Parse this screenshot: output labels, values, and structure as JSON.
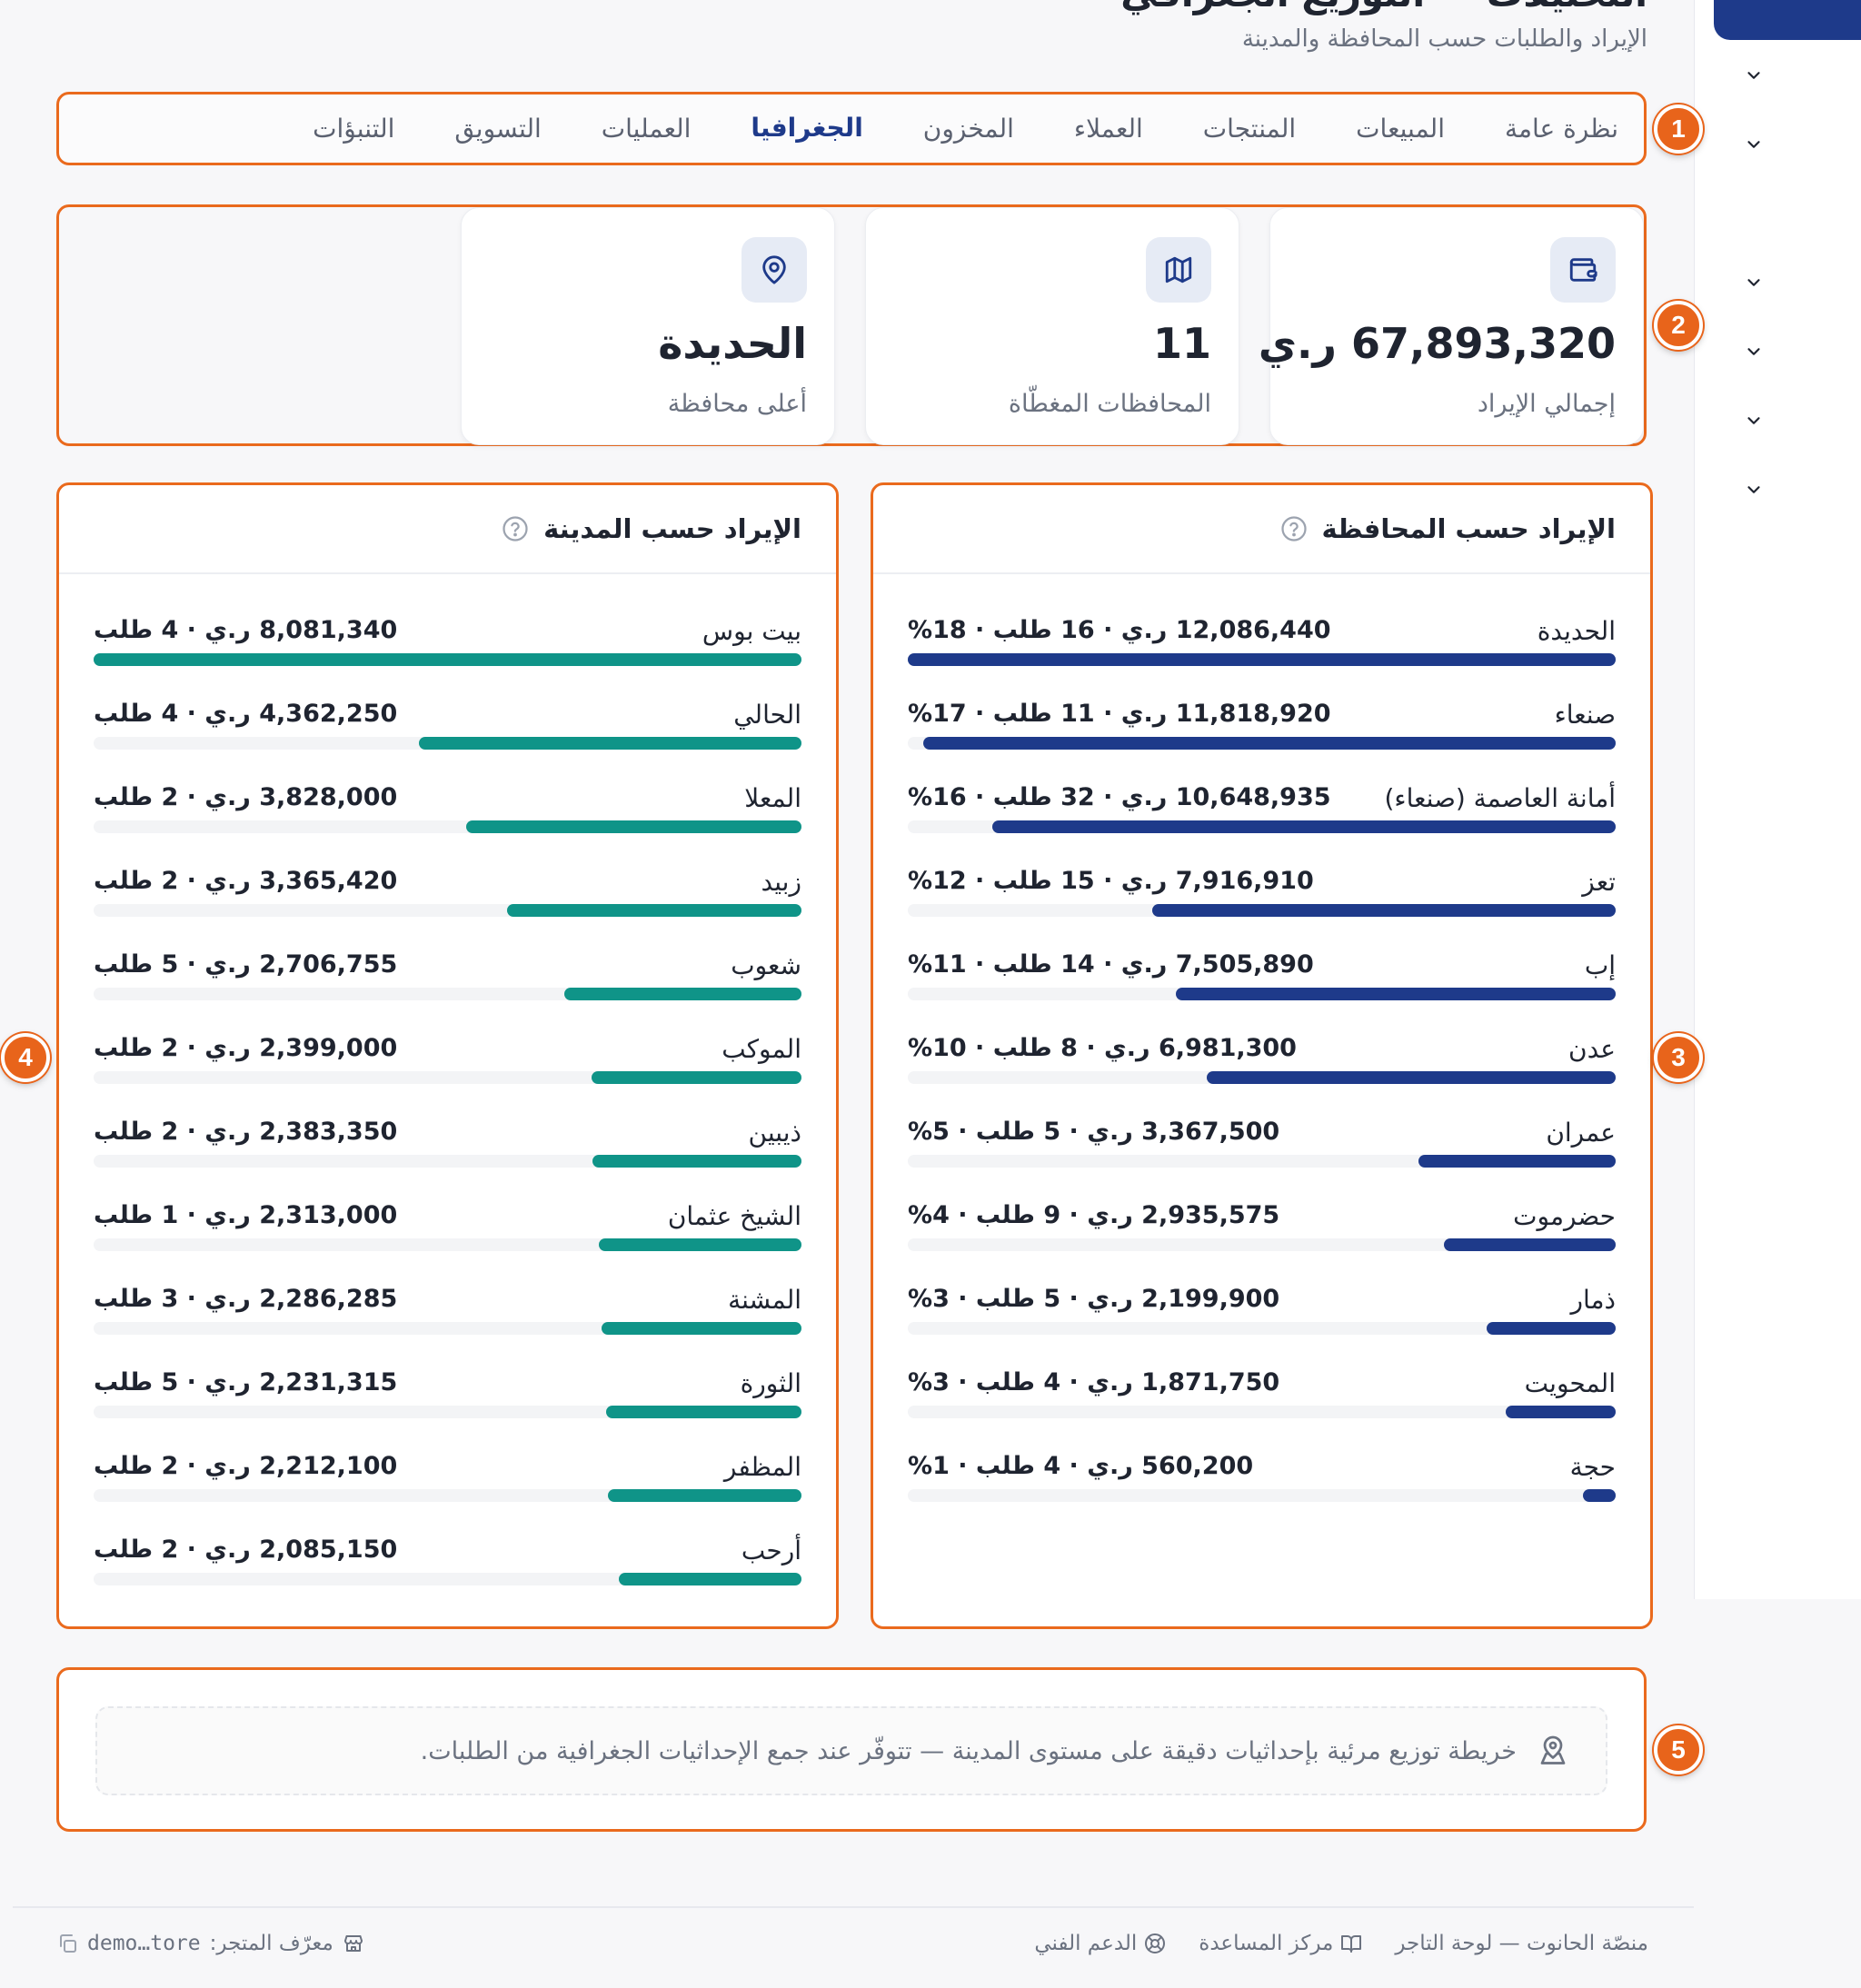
{
  "header": {
    "title": "التحليلات — التوزيع الجغرافي",
    "subtitle": "الإيراد والطلبات حسب المحافظة والمدينة"
  },
  "tabs": [
    {
      "label": "نظرة عامة",
      "active": false
    },
    {
      "label": "المبيعات",
      "active": false
    },
    {
      "label": "المنتجات",
      "active": false
    },
    {
      "label": "العملاء",
      "active": false
    },
    {
      "label": "المخزون",
      "active": false
    },
    {
      "label": "الجغرافيا",
      "active": true
    },
    {
      "label": "العمليات",
      "active": false
    },
    {
      "label": "التسويق",
      "active": false
    },
    {
      "label": "التنبؤات",
      "active": false
    }
  ],
  "kpis": [
    {
      "icon": "wallet-icon",
      "value": "67,893,320 ر.ي",
      "label": "إجمالي الإيراد"
    },
    {
      "icon": "map-icon",
      "value": "11",
      "label": "المحافظات المغطّاة"
    },
    {
      "icon": "map-pin-icon",
      "value": "الحديدة",
      "label": "أعلى محافظة"
    }
  ],
  "governorates": {
    "title": "الإيراد حسب المحافظة",
    "bar_color": "#1e3a8a",
    "rows": [
      {
        "name": "الحديدة",
        "stats": "12,086,440 ر.ي · 16 طلب · 18%",
        "share": 1.0
      },
      {
        "name": "صنعاء",
        "stats": "11,818,920 ر.ي · 11 طلب · 17%",
        "share": 0.978
      },
      {
        "name": "أمانة العاصمة (صنعاء)",
        "stats": "10,648,935 ر.ي · 32 طلب · 16%",
        "share": 0.881
      },
      {
        "name": "تعز",
        "stats": "7,916,910 ر.ي · 15 طلب · 12%",
        "share": 0.655
      },
      {
        "name": "إب",
        "stats": "7,505,890 ر.ي · 14 طلب · 11%",
        "share": 0.621
      },
      {
        "name": "عدن",
        "stats": "6,981,300 ر.ي · 8 طلب · 10%",
        "share": 0.578
      },
      {
        "name": "عمران",
        "stats": "3,367,500 ر.ي · 5 طلب · 5%",
        "share": 0.279
      },
      {
        "name": "حضرموت",
        "stats": "2,935,575 ر.ي · 9 طلب · 4%",
        "share": 0.243
      },
      {
        "name": "ذمار",
        "stats": "2,199,900 ر.ي · 5 طلب · 3%",
        "share": 0.182
      },
      {
        "name": "المحويت",
        "stats": "1,871,750 ر.ي · 4 طلب · 3%",
        "share": 0.155
      },
      {
        "name": "حجة",
        "stats": "560,200 ر.ي · 4 طلب · 1%",
        "share": 0.046
      }
    ]
  },
  "cities": {
    "title": "الإيراد حسب المدينة",
    "bar_color": "#0f9488",
    "rows": [
      {
        "name": "بيت بوس",
        "stats": "8,081,340 ر.ي · 4 طلب",
        "share": 1.0
      },
      {
        "name": "الحالي",
        "stats": "4,362,250 ر.ي · 4 طلب",
        "share": 0.54
      },
      {
        "name": "المعلا",
        "stats": "3,828,000 ر.ي · 2 طلب",
        "share": 0.474
      },
      {
        "name": "زبيد",
        "stats": "3,365,420 ر.ي · 2 طلب",
        "share": 0.416
      },
      {
        "name": "شعوب",
        "stats": "2,706,755 ر.ي · 5 طلب",
        "share": 0.335
      },
      {
        "name": "الموكب",
        "stats": "2,399,000 ر.ي · 2 طلب",
        "share": 0.297
      },
      {
        "name": "ذيبين",
        "stats": "2,383,350 ر.ي · 2 طلب",
        "share": 0.295
      },
      {
        "name": "الشيخ عثمان",
        "stats": "2,313,000 ر.ي · 1 طلب",
        "share": 0.286
      },
      {
        "name": "المشنة",
        "stats": "2,286,285 ر.ي · 3 طلب",
        "share": 0.283
      },
      {
        "name": "الثورة",
        "stats": "2,231,315 ر.ي · 5 طلب",
        "share": 0.276
      },
      {
        "name": "المظفر",
        "stats": "2,212,100 ر.ي · 2 طلب",
        "share": 0.274
      },
      {
        "name": "أرحب",
        "stats": "2,085,150 ر.ي · 2 طلب",
        "share": 0.258
      }
    ]
  },
  "map_notice": {
    "icon": "map-user-icon",
    "text": "خريطة توزيع مرئية بإحداثيات دقيقة على مستوى المدينة — تتوفّر عند جمع الإحداثيات الجغرافية من الطلبات."
  },
  "markers": [
    "1",
    "2",
    "3",
    "4",
    "5"
  ],
  "footer": {
    "platform": "منصّة الحانوت — لوحة التاجر",
    "help_center": "مركز المساعدة",
    "support": "الدعم الفني",
    "store_id_label": "معرّف المتجر:",
    "store_id_value": "demo…tore"
  },
  "colors": {
    "accent": "#1e3a8a",
    "city_bar": "#0f9488",
    "highlight": "#ea6a1d"
  }
}
